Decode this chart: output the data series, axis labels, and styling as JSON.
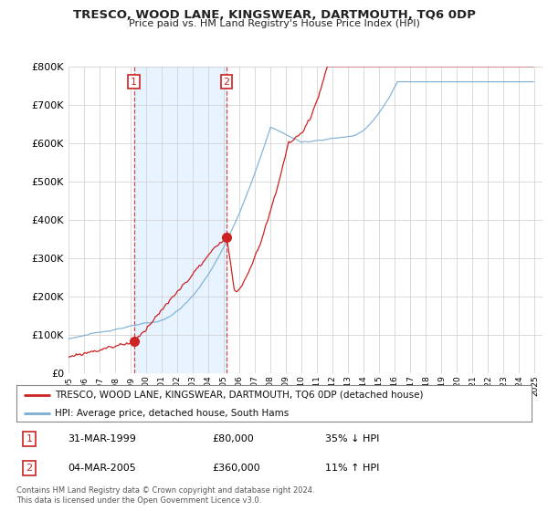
{
  "title": "TRESCO, WOOD LANE, KINGSWEAR, DARTMOUTH, TQ6 0DP",
  "subtitle": "Price paid vs. HM Land Registry's House Price Index (HPI)",
  "hpi_color": "#7aadd4",
  "price_color": "#cc2222",
  "bg_color": "#ffffff",
  "shade_color": "#ddeeff",
  "ylim": [
    0,
    800000
  ],
  "yticks": [
    0,
    100000,
    200000,
    300000,
    400000,
    500000,
    600000,
    700000,
    800000
  ],
  "transaction1": {
    "date": "31-MAR-1999",
    "price": 80000,
    "hpi_rel": "35% ↓ HPI",
    "label": "1",
    "year": 1999.21
  },
  "transaction2": {
    "date": "04-MAR-2005",
    "price": 360000,
    "hpi_rel": "11% ↑ HPI",
    "label": "2",
    "year": 2005.17
  },
  "legend_entry1": "TRESCO, WOOD LANE, KINGSWEAR, DARTMOUTH, TQ6 0DP (detached house)",
  "legend_entry2": "HPI: Average price, detached house, South Hams",
  "footer": "Contains HM Land Registry data © Crown copyright and database right 2024.\nThis data is licensed under the Open Government Licence v3.0.",
  "start_year": 1995,
  "end_year": 2025
}
